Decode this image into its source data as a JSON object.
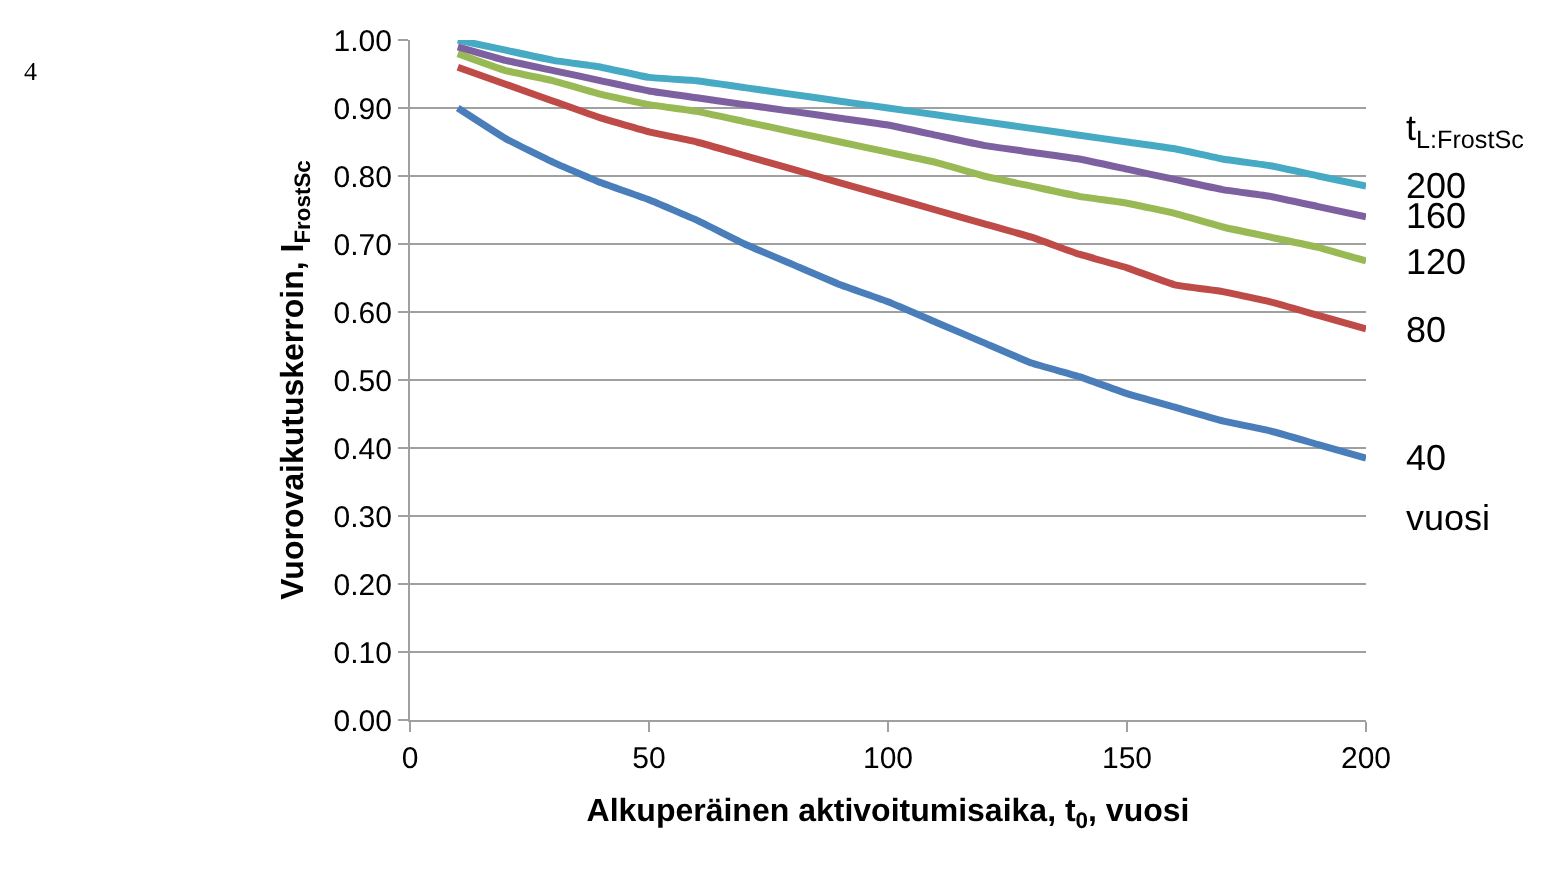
{
  "chart_data": {
    "type": "line",
    "xlabel": "Alkuperäinen aktivoitumisaika, t$_{0}$, vuosi",
    "ylabel": "Vuorovaikutuskerroin, I$_{FrostSc}$",
    "legend_title": "t$_{L:FrostSc}$",
    "annotations": [
      "vuosi",
      "4"
    ],
    "x": [
      10,
      20,
      30,
      40,
      50,
      60,
      70,
      80,
      90,
      100,
      110,
      120,
      130,
      140,
      150,
      160,
      170,
      180,
      190,
      200
    ],
    "series": [
      {
        "name": "40",
        "color": "#4a7ebb",
        "values": [
          0.9,
          0.855,
          0.82,
          0.79,
          0.765,
          0.735,
          0.7,
          0.67,
          0.64,
          0.615,
          0.585,
          0.555,
          0.525,
          0.505,
          0.48,
          0.46,
          0.44,
          0.425,
          0.405,
          0.385
        ]
      },
      {
        "name": "80",
        "color": "#be4b48",
        "values": [
          0.96,
          0.935,
          0.91,
          0.885,
          0.865,
          0.85,
          0.83,
          0.81,
          0.79,
          0.77,
          0.75,
          0.73,
          0.71,
          0.685,
          0.665,
          0.64,
          0.63,
          0.615,
          0.595,
          0.575
        ]
      },
      {
        "name": "120",
        "color": "#98b954",
        "values": [
          0.98,
          0.955,
          0.94,
          0.92,
          0.905,
          0.895,
          0.88,
          0.865,
          0.85,
          0.835,
          0.82,
          0.8,
          0.785,
          0.77,
          0.76,
          0.745,
          0.725,
          0.71,
          0.695,
          0.675
        ]
      },
      {
        "name": "160",
        "color": "#7d60a0",
        "values": [
          0.99,
          0.97,
          0.955,
          0.94,
          0.925,
          0.915,
          0.905,
          0.895,
          0.885,
          0.875,
          0.86,
          0.845,
          0.835,
          0.825,
          0.81,
          0.795,
          0.78,
          0.77,
          0.755,
          0.74
        ]
      },
      {
        "name": "200",
        "color": "#46aac5",
        "values": [
          1.0,
          0.985,
          0.97,
          0.96,
          0.945,
          0.94,
          0.93,
          0.92,
          0.91,
          0.9,
          0.89,
          0.88,
          0.87,
          0.86,
          0.85,
          0.84,
          0.825,
          0.815,
          0.8,
          0.785
        ]
      }
    ],
    "xlim": [
      0,
      200
    ],
    "xticks": [
      0,
      50,
      100,
      150,
      200
    ],
    "ylim": [
      0,
      1
    ],
    "yticks": [
      {
        "value": 0,
        "label": "0.00"
      },
      {
        "value": 0.1,
        "label": "0.10"
      },
      {
        "value": 0.2,
        "label": "0.20"
      },
      {
        "value": 0.3,
        "label": "0.30"
      },
      {
        "value": 0.4,
        "label": "0.40"
      },
      {
        "value": 0.5,
        "label": "0.50"
      },
      {
        "value": 0.6,
        "label": "0.60"
      },
      {
        "value": 0.7,
        "label": "0.70"
      },
      {
        "value": 0.8,
        "label": "0.80"
      },
      {
        "value": 0.9,
        "label": "0.90"
      },
      {
        "value": 1.0,
        "label": "1.00"
      }
    ],
    "grid": "y",
    "legend": false,
    "marker": "none",
    "line_style": "solid"
  }
}
